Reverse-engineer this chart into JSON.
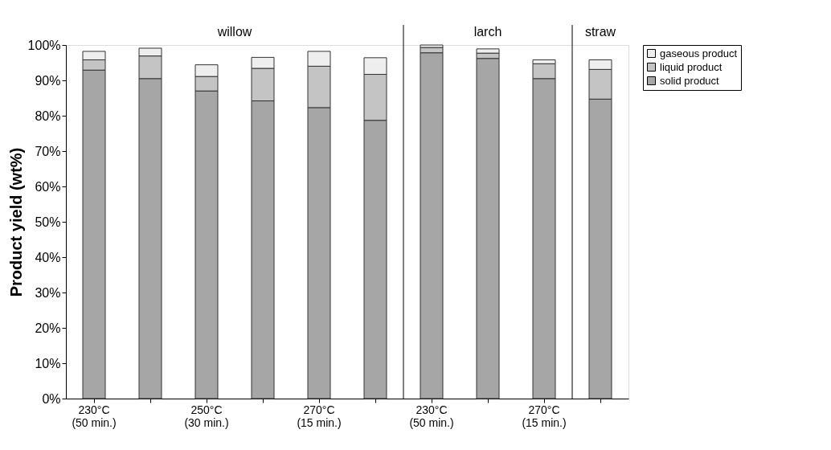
{
  "chart_data": {
    "type": "bar",
    "stacked": true,
    "ylabel": "Product yield (wt%)",
    "categories": [
      "230°C (50 min.)",
      null,
      "250°C (30 min.)",
      null,
      "270°C (15 min.)",
      null,
      "230°C (50 min.)",
      null,
      "270°C (15 min.)",
      null
    ],
    "series": [
      {
        "name": "solid product",
        "color": "#a6a6a6",
        "values": [
          92.9,
          90.5,
          87.0,
          84.2,
          82.3,
          78.7,
          97.8,
          96.2,
          90.5,
          84.7
        ]
      },
      {
        "name": "liquid product",
        "color": "#c4c4c4",
        "values": [
          2.9,
          6.4,
          4.1,
          9.2,
          11.7,
          13.0,
          1.5,
          1.5,
          4.2,
          8.4
        ]
      },
      {
        "name": "gaseous product",
        "color": "#eeeeee",
        "values": [
          2.4,
          2.2,
          3.3,
          3.1,
          4.2,
          4.7,
          0.7,
          1.2,
          1.1,
          2.7
        ]
      }
    ],
    "ylim": [
      0,
      100
    ],
    "yticks": [
      {
        "value": 0,
        "label": "0%"
      },
      {
        "value": 10,
        "label": "10%"
      },
      {
        "value": 20,
        "label": "20%"
      },
      {
        "value": 30,
        "label": "30%"
      },
      {
        "value": 40,
        "label": "40%"
      },
      {
        "value": 50,
        "label": "50%"
      },
      {
        "value": 60,
        "label": "60%"
      },
      {
        "value": 70,
        "label": "70%"
      },
      {
        "value": 80,
        "label": "80%"
      },
      {
        "value": 90,
        "label": "90%"
      },
      {
        "value": 100,
        "label": "100%"
      }
    ],
    "annotations": [
      "willow",
      "larch",
      "straw"
    ],
    "grid": false,
    "legend": "right"
  }
}
